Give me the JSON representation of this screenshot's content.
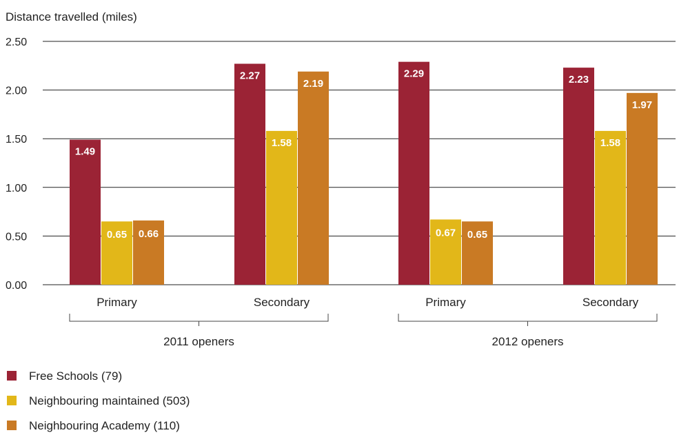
{
  "chart_data": {
    "type": "bar",
    "ylabel": "Distance travelled (miles)",
    "ylim": [
      0,
      2.5
    ],
    "yticks": [
      "0.00",
      "0.50",
      "1.00",
      "1.50",
      "2.00",
      "2.50"
    ],
    "grid": true,
    "groups": [
      {
        "label": "2011 openers",
        "categories": [
          "Primary",
          "Secondary"
        ]
      },
      {
        "label": "2012 openers",
        "categories": [
          "Primary",
          "Secondary"
        ]
      }
    ],
    "categories": [
      "Primary",
      "Secondary",
      "Primary",
      "Secondary"
    ],
    "series": [
      {
        "name": "Free Schools (79)",
        "color": "#9b2335",
        "values": [
          1.49,
          2.27,
          2.29,
          2.23
        ],
        "labels": [
          "1.49",
          "2.27",
          "2.29",
          "2.23"
        ]
      },
      {
        "name": "Neighbouring maintained (503)",
        "color": "#e2b719",
        "values": [
          0.65,
          1.58,
          0.67,
          1.58
        ],
        "labels": [
          "0.65",
          "1.58",
          "0.67",
          "1.58"
        ]
      },
      {
        "name": "Neighbouring Academy (110)",
        "color": "#c97a24",
        "values": [
          0.66,
          2.19,
          0.65,
          1.97
        ],
        "labels": [
          "0.66",
          "2.19",
          "0.65",
          "1.97"
        ]
      }
    ],
    "legend_position": "bottom-left"
  }
}
